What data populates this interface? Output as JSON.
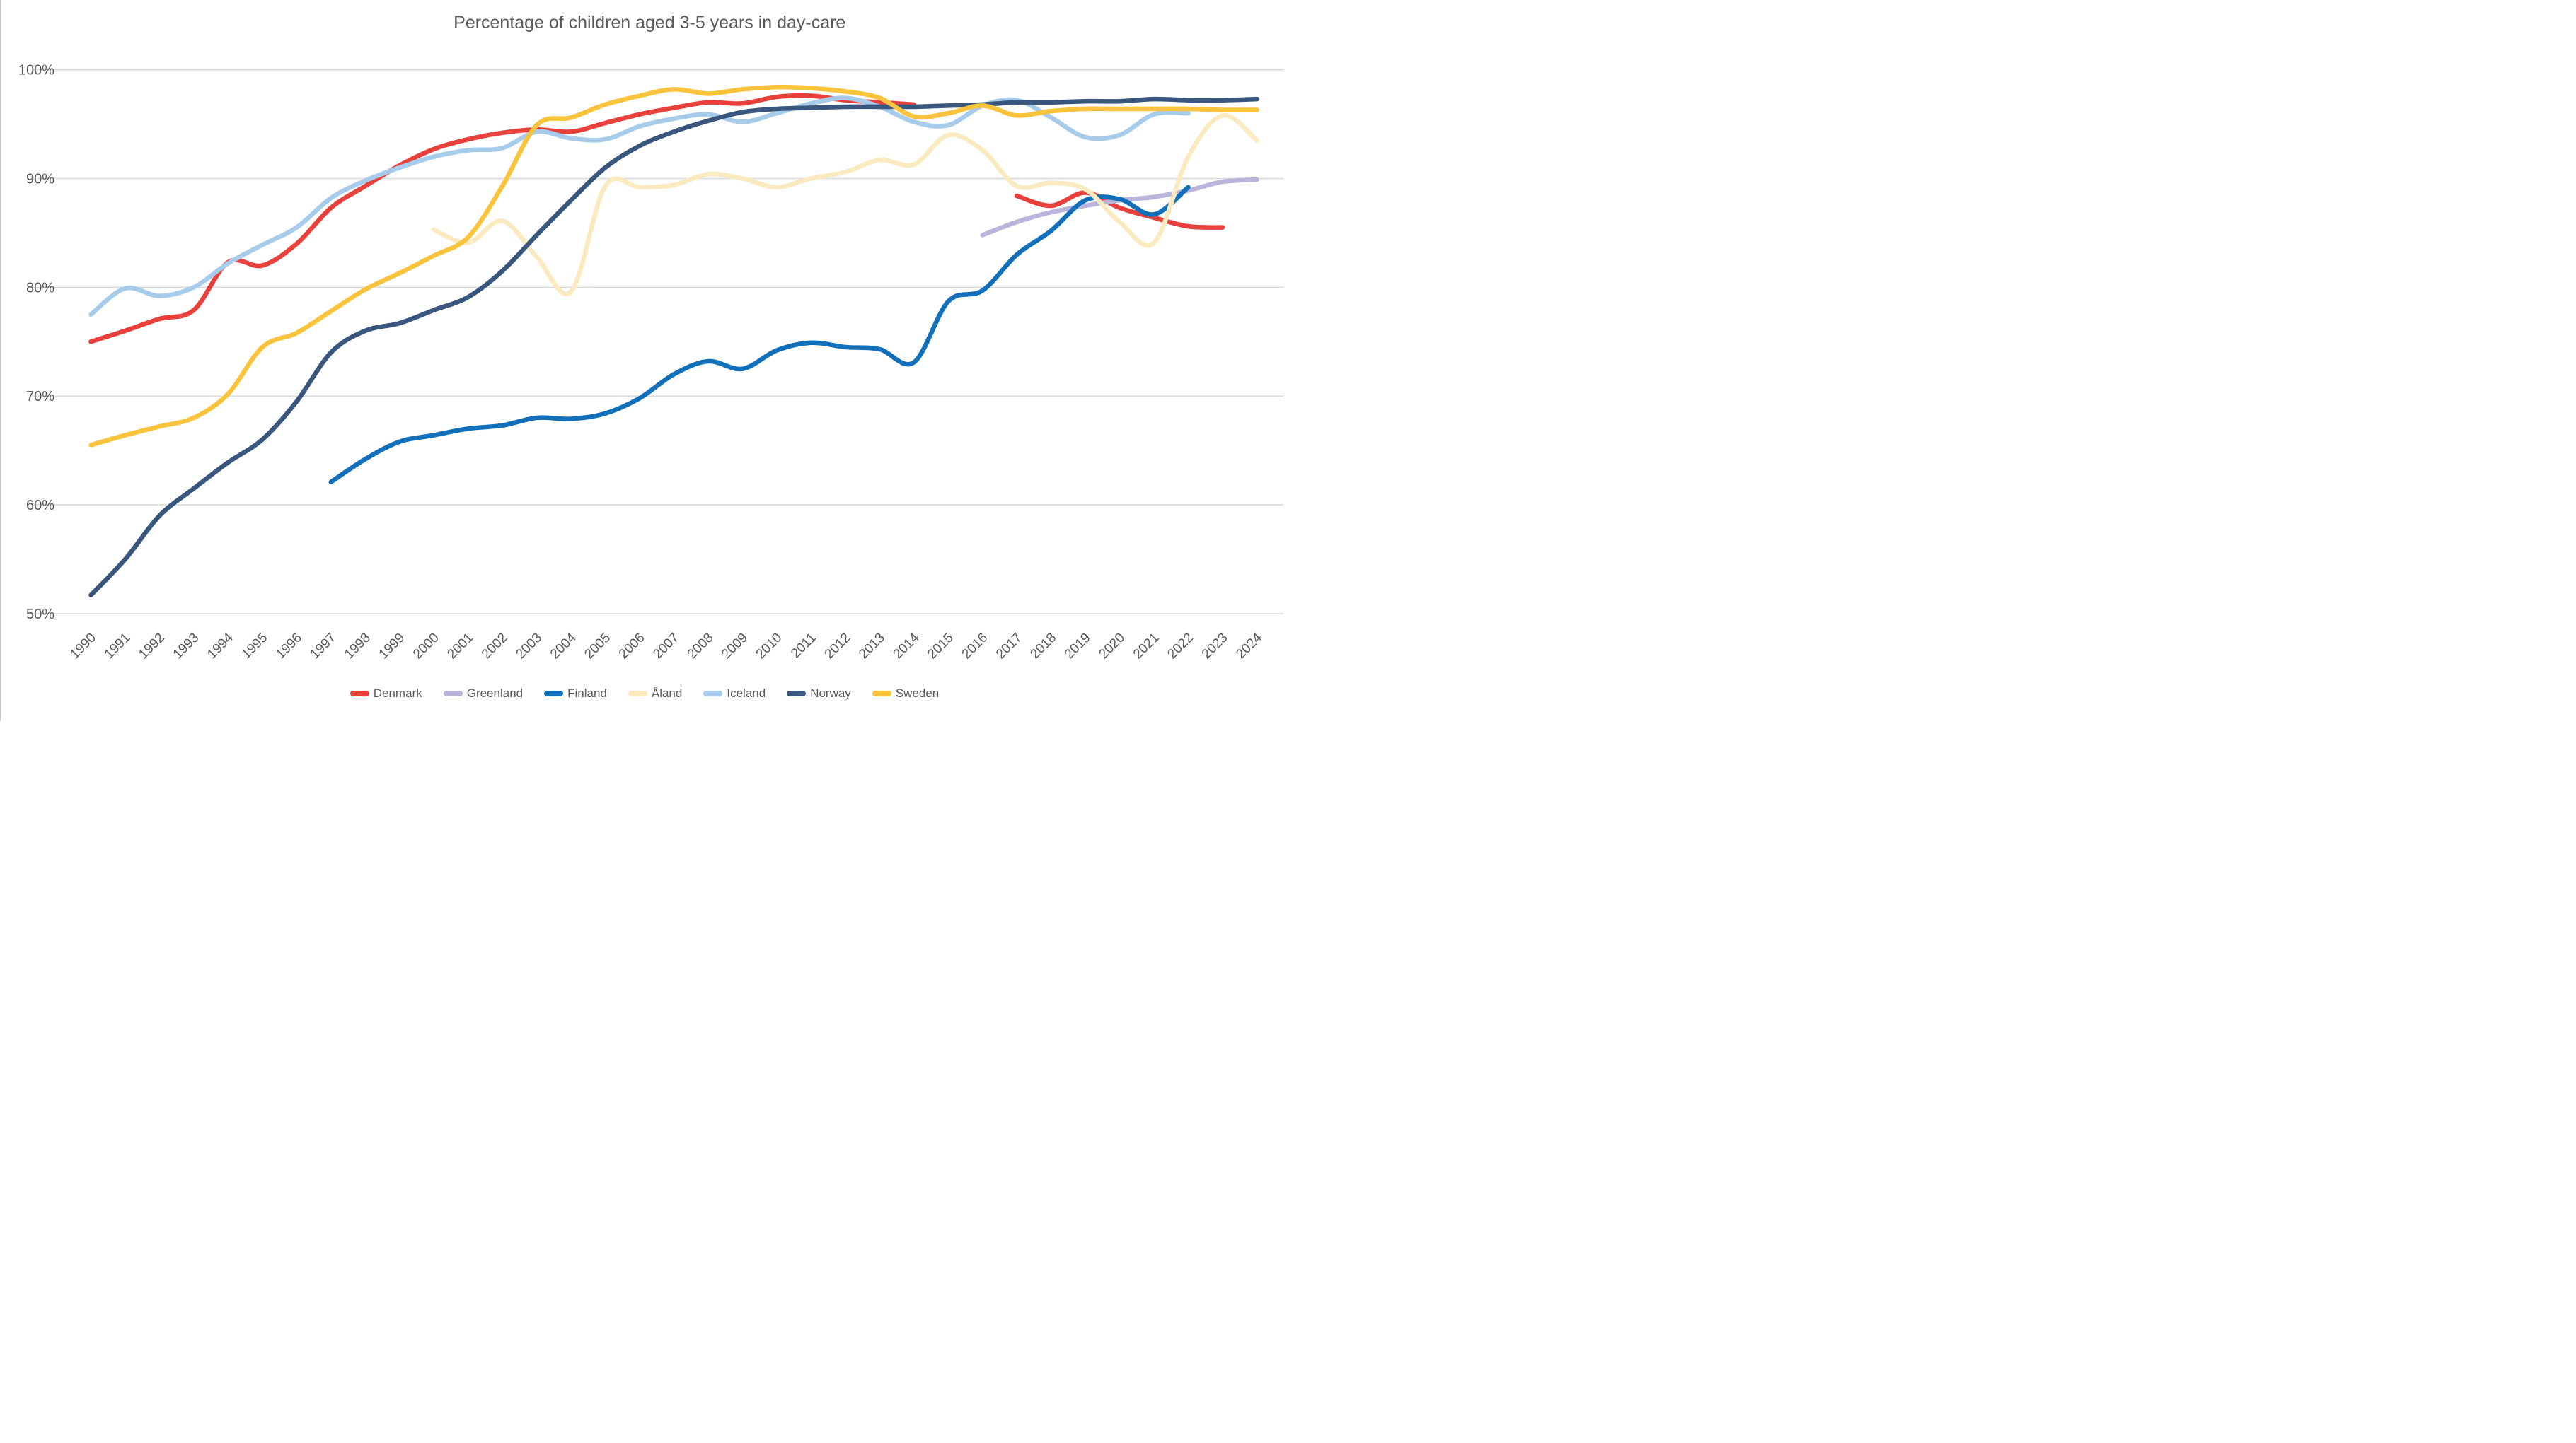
{
  "chart_data": {
    "type": "line",
    "title": "Percentage of children aged 3-5 years in day-care",
    "xlabel": "",
    "ylabel": "",
    "grid": true,
    "legend_position": "bottom",
    "smooth_lines": true,
    "x_axis": {
      "tick_labels": [
        "1990",
        "1991",
        "1992",
        "1993",
        "1994",
        "1995",
        "1996",
        "1997",
        "1998",
        "1999",
        "2000",
        "2001",
        "2002",
        "2003",
        "2004",
        "2005",
        "2006",
        "2007",
        "2008",
        "2009",
        "2010",
        "2011",
        "2012",
        "2013",
        "2014",
        "2015",
        "2016",
        "2017",
        "2018",
        "2019",
        "2020",
        "2021",
        "2022",
        "2023",
        "2024"
      ],
      "range": [
        1990,
        2024
      ],
      "label_rotation_deg": -45
    },
    "y_axis": {
      "tick_labels": [
        "50%",
        "60%",
        "70%",
        "80%",
        "90%",
        "100%"
      ],
      "tick_values": [
        50,
        60,
        70,
        80,
        90,
        100
      ],
      "range": [
        50,
        100
      ]
    },
    "series": [
      {
        "name": "Denmark",
        "color": "#E8413C",
        "segments": [
          [
            [
              1990,
              75.0
            ],
            [
              1991,
              76.0
            ],
            [
              1992,
              77.1
            ],
            [
              1993,
              77.9
            ],
            [
              1994,
              82.3
            ],
            [
              1995,
              82.0
            ],
            [
              1996,
              84.0
            ],
            [
              1997,
              87.3
            ],
            [
              1998,
              89.3
            ],
            [
              1999,
              91.2
            ],
            [
              2000,
              92.7
            ],
            [
              2001,
              93.6
            ],
            [
              2002,
              94.2
            ],
            [
              2003,
              94.5
            ],
            [
              2004,
              94.3
            ],
            [
              2005,
              95.1
            ],
            [
              2006,
              95.9
            ],
            [
              2007,
              96.5
            ],
            [
              2008,
              97.0
            ],
            [
              2009,
              96.9
            ],
            [
              2010,
              97.5
            ],
            [
              2011,
              97.6
            ],
            [
              2012,
              97.2
            ],
            [
              2013,
              97.0
            ],
            [
              2014,
              96.8
            ]
          ],
          [
            [
              2017,
              88.4
            ],
            [
              2018,
              87.5
            ],
            [
              2019,
              88.7
            ],
            [
              2020,
              87.3
            ],
            [
              2021,
              86.4
            ],
            [
              2022,
              85.6
            ],
            [
              2023,
              85.5
            ]
          ]
        ]
      },
      {
        "name": "Greenland",
        "color": "#B9B5DB",
        "segments": [
          [
            [
              2016,
              84.8
            ],
            [
              2017,
              86.0
            ],
            [
              2018,
              86.9
            ],
            [
              2019,
              87.5
            ],
            [
              2020,
              88.0
            ],
            [
              2021,
              88.3
            ],
            [
              2022,
              88.9
            ],
            [
              2023,
              89.7
            ],
            [
              2024,
              89.9
            ]
          ]
        ]
      },
      {
        "name": "Finland",
        "color": "#1170B9",
        "segments": [
          [
            [
              1997,
              62.1
            ],
            [
              1998,
              64.2
            ],
            [
              1999,
              65.8
            ],
            [
              2000,
              66.4
            ],
            [
              2001,
              67.0
            ],
            [
              2002,
              67.3
            ],
            [
              2003,
              68.0
            ],
            [
              2004,
              67.9
            ],
            [
              2005,
              68.4
            ],
            [
              2006,
              69.8
            ],
            [
              2007,
              72.0
            ],
            [
              2008,
              73.2
            ],
            [
              2009,
              72.5
            ],
            [
              2010,
              74.2
            ],
            [
              2011,
              74.9
            ],
            [
              2012,
              74.5
            ],
            [
              2013,
              74.3
            ],
            [
              2014,
              73.1
            ],
            [
              2015,
              78.7
            ],
            [
              2016,
              79.7
            ],
            [
              2017,
              83.0
            ],
            [
              2018,
              85.2
            ],
            [
              2019,
              88.0
            ],
            [
              2020,
              88.1
            ],
            [
              2021,
              86.7
            ],
            [
              2022,
              89.2
            ]
          ]
        ]
      },
      {
        "name": "Åland",
        "color": "#FAEAC0",
        "segments": [
          [
            [
              2000,
              85.3
            ],
            [
              2001,
              84.1
            ],
            [
              2002,
              86.1
            ],
            [
              2003,
              82.8
            ],
            [
              2004,
              79.6
            ],
            [
              2005,
              89.3
            ],
            [
              2006,
              89.2
            ],
            [
              2007,
              89.4
            ],
            [
              2008,
              90.4
            ],
            [
              2009,
              90.0
            ],
            [
              2010,
              89.2
            ],
            [
              2011,
              90.0
            ],
            [
              2012,
              90.6
            ],
            [
              2013,
              91.7
            ],
            [
              2014,
              91.3
            ],
            [
              2015,
              94.0
            ],
            [
              2016,
              92.6
            ],
            [
              2017,
              89.3
            ],
            [
              2018,
              89.6
            ],
            [
              2019,
              89.0
            ],
            [
              2020,
              86.0
            ],
            [
              2021,
              84.1
            ],
            [
              2022,
              92.0
            ],
            [
              2023,
              95.8
            ],
            [
              2024,
              93.5
            ]
          ]
        ]
      },
      {
        "name": "Iceland",
        "color": "#A7CBEB",
        "segments": [
          [
            [
              1990,
              77.5
            ],
            [
              1991,
              79.9
            ],
            [
              1992,
              79.2
            ],
            [
              1993,
              80.0
            ],
            [
              1994,
              82.2
            ],
            [
              1995,
              83.9
            ],
            [
              1996,
              85.5
            ],
            [
              1997,
              88.2
            ],
            [
              1998,
              89.8
            ],
            [
              1999,
              91.0
            ],
            [
              2000,
              92.0
            ],
            [
              2001,
              92.6
            ],
            [
              2002,
              92.8
            ],
            [
              2003,
              94.3
            ],
            [
              2004,
              93.7
            ],
            [
              2005,
              93.6
            ],
            [
              2006,
              94.8
            ],
            [
              2007,
              95.5
            ],
            [
              2008,
              95.9
            ],
            [
              2009,
              95.2
            ],
            [
              2010,
              96.0
            ],
            [
              2011,
              96.9
            ],
            [
              2012,
              97.4
            ],
            [
              2013,
              96.6
            ],
            [
              2014,
              95.2
            ],
            [
              2015,
              94.9
            ],
            [
              2016,
              96.7
            ],
            [
              2017,
              97.2
            ],
            [
              2018,
              95.6
            ],
            [
              2019,
              93.8
            ],
            [
              2020,
              94.0
            ],
            [
              2021,
              95.9
            ],
            [
              2022,
              96.0
            ]
          ]
        ]
      },
      {
        "name": "Norway",
        "color": "#39567E",
        "segments": [
          [
            [
              1990,
              51.7
            ],
            [
              1991,
              55.0
            ],
            [
              1992,
              59.0
            ],
            [
              1993,
              61.5
            ],
            [
              1994,
              63.9
            ],
            [
              1995,
              66.0
            ],
            [
              1996,
              69.5
            ],
            [
              1997,
              74.0
            ],
            [
              1998,
              76.0
            ],
            [
              1999,
              76.7
            ],
            [
              2000,
              77.9
            ],
            [
              2001,
              79.1
            ],
            [
              2002,
              81.5
            ],
            [
              2003,
              84.8
            ],
            [
              2004,
              88.0
            ],
            [
              2005,
              91.0
            ],
            [
              2006,
              93.0
            ],
            [
              2007,
              94.3
            ],
            [
              2008,
              95.3
            ],
            [
              2009,
              96.1
            ],
            [
              2010,
              96.4
            ],
            [
              2011,
              96.5
            ],
            [
              2012,
              96.6
            ],
            [
              2013,
              96.6
            ],
            [
              2014,
              96.6
            ],
            [
              2015,
              96.7
            ],
            [
              2016,
              96.8
            ],
            [
              2017,
              97.0
            ],
            [
              2018,
              97.0
            ],
            [
              2019,
              97.1
            ],
            [
              2020,
              97.1
            ],
            [
              2021,
              97.3
            ],
            [
              2022,
              97.2
            ],
            [
              2023,
              97.2
            ],
            [
              2024,
              97.3
            ]
          ]
        ]
      },
      {
        "name": "Sweden",
        "color": "#FAC33C",
        "segments": [
          [
            [
              1990,
              65.5
            ],
            [
              1991,
              66.4
            ],
            [
              1992,
              67.2
            ],
            [
              1993,
              68.0
            ],
            [
              1994,
              70.2
            ],
            [
              1995,
              74.5
            ],
            [
              1996,
              75.8
            ],
            [
              1997,
              77.8
            ],
            [
              1998,
              79.8
            ],
            [
              1999,
              81.3
            ],
            [
              2000,
              82.9
            ],
            [
              2001,
              84.6
            ],
            [
              2002,
              89.3
            ],
            [
              2003,
              94.9
            ],
            [
              2004,
              95.6
            ],
            [
              2005,
              96.8
            ],
            [
              2006,
              97.6
            ],
            [
              2007,
              98.2
            ],
            [
              2008,
              97.8
            ],
            [
              2009,
              98.2
            ],
            [
              2010,
              98.4
            ],
            [
              2011,
              98.3
            ],
            [
              2012,
              98.0
            ],
            [
              2013,
              97.4
            ],
            [
              2014,
              95.7
            ],
            [
              2015,
              96.0
            ],
            [
              2016,
              96.7
            ],
            [
              2017,
              95.8
            ],
            [
              2018,
              96.2
            ],
            [
              2019,
              96.4
            ],
            [
              2020,
              96.4
            ],
            [
              2021,
              96.4
            ],
            [
              2022,
              96.4
            ],
            [
              2023,
              96.3
            ],
            [
              2024,
              96.3
            ]
          ]
        ]
      }
    ]
  },
  "styles": {
    "title_color": "#595959",
    "axis_label_color": "#595959",
    "gridline_color": "#D9D9D9",
    "background_color": "#FFFFFF",
    "line_width": 13
  }
}
